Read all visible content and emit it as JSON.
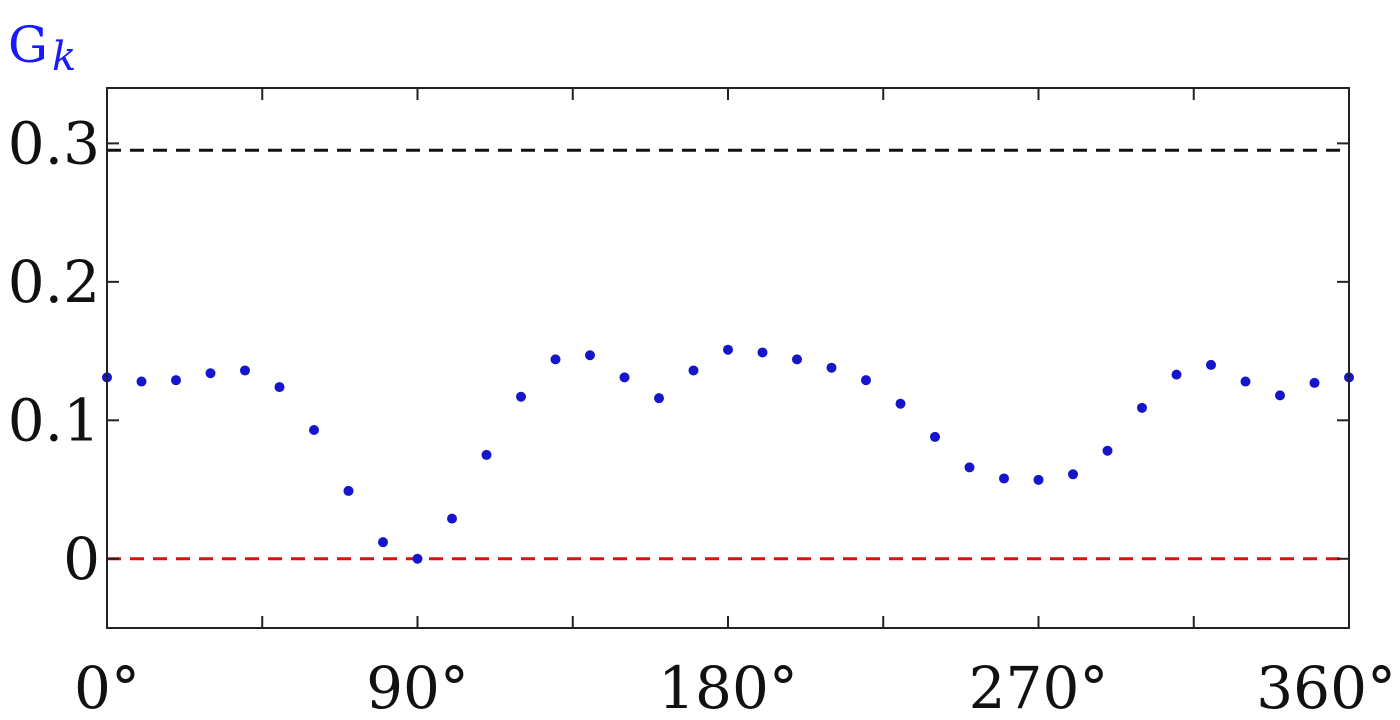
{
  "chart_data": {
    "type": "scatter",
    "ylabel": "G",
    "ylabel_subscript": "k",
    "xlim": [
      0,
      360
    ],
    "ylim": [
      -0.05,
      0.34
    ],
    "x_ticks": [
      0,
      45,
      90,
      135,
      180,
      225,
      270,
      315,
      360
    ],
    "x_tick_labels": [
      "0°",
      "",
      "90°",
      "",
      "180°",
      "",
      "270°",
      "",
      "360°"
    ],
    "y_ticks": [
      0,
      0.1,
      0.2,
      0.3
    ],
    "y_tick_labels": [
      "0",
      "0.1",
      "0.2",
      "0.3"
    ],
    "grid": false,
    "reference_lines": [
      {
        "y": 0.295,
        "color": "#111111",
        "style": "dashed"
      },
      {
        "y": 0.0,
        "color": "#dd1111",
        "style": "dashed"
      }
    ],
    "point_color": "#1515cc",
    "points": [
      {
        "x": 0,
        "y": 0.131
      },
      {
        "x": 10,
        "y": 0.128
      },
      {
        "x": 20,
        "y": 0.129
      },
      {
        "x": 30,
        "y": 0.134
      },
      {
        "x": 40,
        "y": 0.136
      },
      {
        "x": 50,
        "y": 0.124
      },
      {
        "x": 60,
        "y": 0.093
      },
      {
        "x": 70,
        "y": 0.049
      },
      {
        "x": 80,
        "y": 0.012
      },
      {
        "x": 90,
        "y": 0.0
      },
      {
        "x": 100,
        "y": 0.029
      },
      {
        "x": 110,
        "y": 0.075
      },
      {
        "x": 120,
        "y": 0.117
      },
      {
        "x": 130,
        "y": 0.144
      },
      {
        "x": 140,
        "y": 0.147
      },
      {
        "x": 150,
        "y": 0.131
      },
      {
        "x": 160,
        "y": 0.116
      },
      {
        "x": 170,
        "y": 0.136
      },
      {
        "x": 180,
        "y": 0.151
      },
      {
        "x": 190,
        "y": 0.149
      },
      {
        "x": 200,
        "y": 0.144
      },
      {
        "x": 210,
        "y": 0.138
      },
      {
        "x": 220,
        "y": 0.129
      },
      {
        "x": 230,
        "y": 0.112
      },
      {
        "x": 240,
        "y": 0.088
      },
      {
        "x": 250,
        "y": 0.066
      },
      {
        "x": 260,
        "y": 0.058
      },
      {
        "x": 270,
        "y": 0.057
      },
      {
        "x": 280,
        "y": 0.061
      },
      {
        "x": 290,
        "y": 0.078
      },
      {
        "x": 300,
        "y": 0.109
      },
      {
        "x": 310,
        "y": 0.133
      },
      {
        "x": 320,
        "y": 0.14
      },
      {
        "x": 330,
        "y": 0.128
      },
      {
        "x": 340,
        "y": 0.118
      },
      {
        "x": 350,
        "y": 0.127
      },
      {
        "x": 360,
        "y": 0.131
      }
    ]
  }
}
